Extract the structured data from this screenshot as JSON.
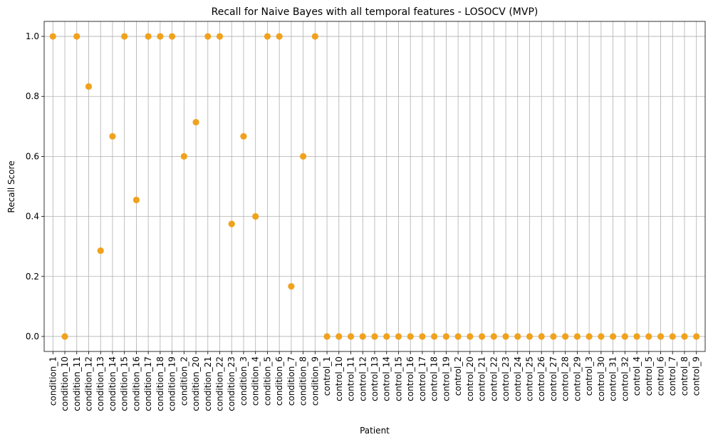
{
  "chart_data": {
    "type": "scatter",
    "title": "Recall for Naive Bayes with all temporal features - LOSOCV (MVP)",
    "xlabel": "Patient",
    "ylabel": "Recall Score",
    "ylim": [
      -0.05,
      1.05
    ],
    "yticks": [
      "0.0",
      "0.2",
      "0.4",
      "0.6",
      "0.8",
      "1.0"
    ],
    "grid": true,
    "marker_color": "#f0a21d",
    "categories": [
      "condition_1",
      "condition_10",
      "condition_11",
      "condition_12",
      "condition_13",
      "condition_14",
      "condition_15",
      "condition_16",
      "condition_17",
      "condition_18",
      "condition_19",
      "condition_2",
      "condition_20",
      "condition_21",
      "condition_22",
      "condition_23",
      "condition_3",
      "condition_4",
      "condition_5",
      "condition_6",
      "condition_7",
      "condition_8",
      "condition_9",
      "control_1",
      "control_10",
      "control_11",
      "control_12",
      "control_13",
      "control_14",
      "control_15",
      "control_16",
      "control_17",
      "control_18",
      "control_19",
      "control_2",
      "control_20",
      "control_21",
      "control_22",
      "control_23",
      "control_24",
      "control_25",
      "control_26",
      "control_27",
      "control_28",
      "control_29",
      "control_3",
      "control_30",
      "control_31",
      "control_32",
      "control_4",
      "control_5",
      "control_6",
      "control_7",
      "control_8",
      "control_9"
    ],
    "values": [
      1.0,
      0.0,
      1.0,
      0.833,
      0.286,
      0.667,
      1.0,
      0.455,
      1.0,
      1.0,
      1.0,
      0.6,
      0.714,
      1.0,
      1.0,
      0.375,
      0.667,
      0.4,
      1.0,
      1.0,
      0.167,
      0.6,
      1.0,
      0,
      0,
      0,
      0,
      0,
      0,
      0,
      0,
      0,
      0,
      0,
      0,
      0,
      0,
      0,
      0,
      0,
      0,
      0,
      0,
      0,
      0,
      0,
      0,
      0,
      0,
      0,
      0,
      0,
      0,
      0,
      0
    ]
  }
}
